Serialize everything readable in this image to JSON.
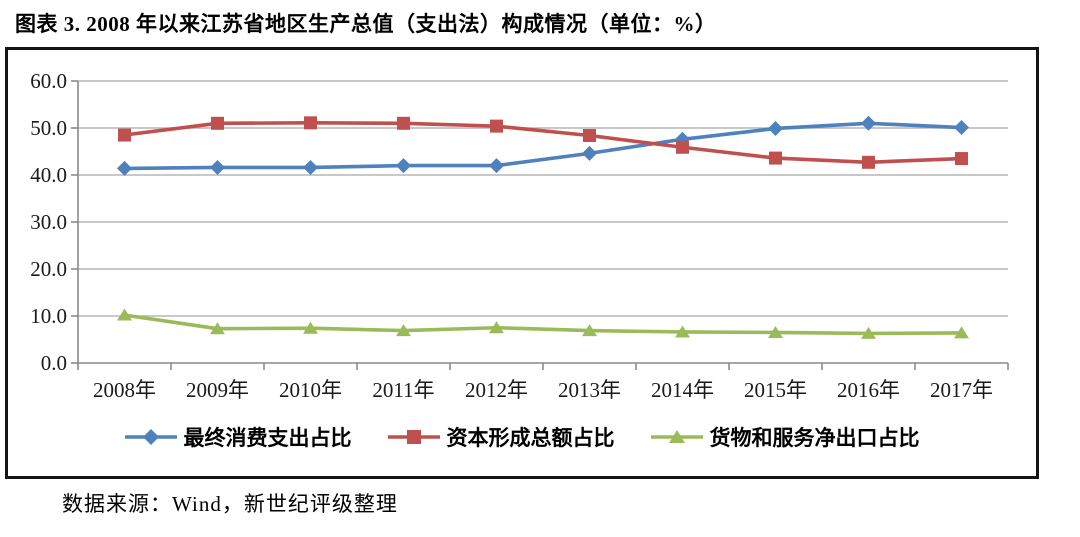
{
  "page": {
    "title": "图表 3. 2008 年以来江苏省地区生产总值（支出法）构成情况（单位：%）",
    "source": "数据来源：Wind，新世纪评级整理"
  },
  "chart_data": {
    "type": "line",
    "title": "图表 3. 2008 年以来江苏省地区生产总值（支出法）构成情况（单位：%）",
    "categories": [
      "2008年",
      "2009年",
      "2010年",
      "2011年",
      "2012年",
      "2013年",
      "2014年",
      "2015年",
      "2016年",
      "2017年"
    ],
    "series": [
      {
        "name": "最终消费支出占比",
        "marker": "diamond",
        "color": "#4F81BD",
        "values": [
          41.4,
          41.6,
          41.6,
          42.0,
          42.0,
          44.6,
          47.6,
          49.9,
          51.0,
          50.1
        ]
      },
      {
        "name": "资本形成总额占比",
        "marker": "square",
        "color": "#C0504D",
        "values": [
          48.5,
          51.0,
          51.1,
          51.0,
          50.4,
          48.4,
          45.9,
          43.6,
          42.7,
          43.5
        ]
      },
      {
        "name": "货物和服务净出口占比",
        "marker": "triangle",
        "color": "#9BBB59",
        "values": [
          10.2,
          7.3,
          7.4,
          6.9,
          7.5,
          6.9,
          6.6,
          6.5,
          6.3,
          6.4
        ]
      }
    ],
    "xlabel": "",
    "ylabel": "",
    "ylim": [
      0,
      60
    ],
    "y_ticks": [
      0,
      10,
      20,
      30,
      40,
      50,
      60
    ],
    "y_tick_labels": [
      "0.0",
      "10.0",
      "20.0",
      "30.0",
      "40.0",
      "50.0",
      "60.0"
    ],
    "grid": true,
    "legend_position": "bottom",
    "axis_color": "#8a8a8a",
    "grid_color": "#b6b6b6"
  }
}
